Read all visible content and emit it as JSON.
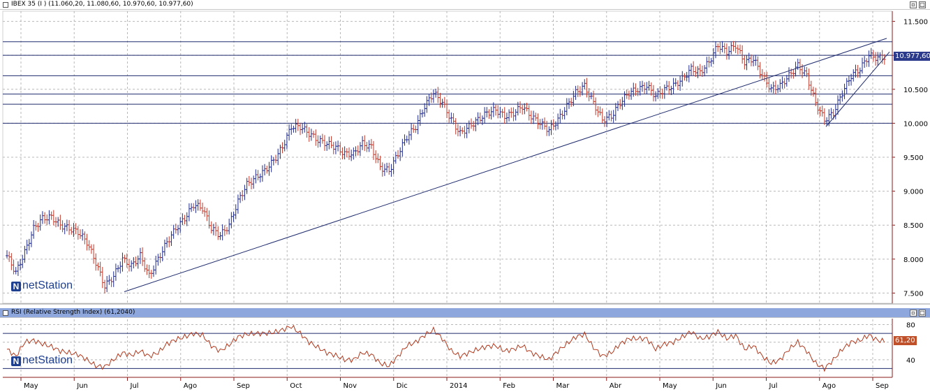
{
  "price_panel": {
    "header": "IBEX 35 (I ) (11.060,20, 11.080,60, 10.970,60, 10.977,60)",
    "current_label": "10.977,60",
    "current_value": 10977.6,
    "logo": "netStation",
    "logo_mark": "N"
  },
  "rsi_panel": {
    "header": "RSI (Relative Strength Index) (61,2040)",
    "current_label": "61,20",
    "current_value": 61.2,
    "logo": "netStation",
    "logo_mark": "N"
  },
  "window_buttons": {
    "restore": "▫",
    "maximize": "□"
  },
  "months": [
    "May",
    "Jun",
    "Jul",
    "Ago",
    "Sep",
    "Oct",
    "Nov",
    "Dic",
    "2014",
    "Feb",
    "Mar",
    "Abr",
    "May",
    "Jun",
    "Jul",
    "Ago",
    "Sep"
  ],
  "colors": {
    "up": "#1f2b8f",
    "down": "#c0392b",
    "rsi_line": "#b0391e",
    "hline": "#1f2b6e",
    "grid": "#b8b8b8",
    "axis": "#8b1a1a",
    "price_tag": "#2b3a8a",
    "rsi_tag": "#c0502a"
  },
  "chart_data": [
    {
      "type": "ohlc",
      "title": "IBEX 35 (I ) (11.060,20, 11.080,60, 10.970,60, 10.977,60)",
      "y_ticks": [
        "11.500",
        "11.000",
        "10.500",
        "10.000",
        "9.500",
        "9.000",
        "8.500",
        "8.000",
        "7.500"
      ],
      "ylim": [
        7350,
        11650
      ],
      "horizontal_levels": [
        11200,
        11000,
        10700,
        10430,
        10280,
        10000
      ],
      "trendlines": [
        {
          "from": [
            "Jun",
            7520
          ],
          "to": [
            "Sep",
            11250
          ]
        },
        {
          "from": [
            "Ago",
            9950
          ],
          "to": [
            "Sep",
            11050
          ]
        }
      ],
      "closes_approx": [
        8050,
        7800,
        8100,
        8450,
        8600,
        8620,
        8500,
        8450,
        8400,
        8250,
        7950,
        7600,
        7750,
        8000,
        7900,
        8050,
        7750,
        8000,
        8250,
        8450,
        8600,
        8800,
        8750,
        8450,
        8350,
        8500,
        8850,
        9100,
        9200,
        9300,
        9450,
        9650,
        9950,
        9950,
        9850,
        9750,
        9700,
        9650,
        9550,
        9550,
        9700,
        9650,
        9350,
        9300,
        9550,
        9800,
        9950,
        10250,
        10450,
        10300,
        10050,
        9850,
        9950,
        10050,
        10150,
        10200,
        10100,
        10150,
        10250,
        10100,
        10000,
        9900,
        10050,
        10250,
        10450,
        10550,
        10300,
        10050,
        10100,
        10300,
        10450,
        10500,
        10550,
        10400,
        10500,
        10550,
        10650,
        10800,
        10750,
        10900,
        11150,
        11050,
        11150,
        10900,
        10950,
        10700,
        10500,
        10550,
        10700,
        10850,
        10700,
        10300,
        10050,
        10150,
        10450,
        10700,
        10800,
        11000,
        10960,
        10978
      ]
    },
    {
      "type": "line",
      "title": "RSI (Relative Strength Index) (61,2040)",
      "y_ticks": [
        "80",
        "60",
        "40"
      ],
      "ylim": [
        20,
        86
      ],
      "horizontal_levels": [
        70,
        30
      ],
      "values_approx": [
        52,
        44,
        60,
        62,
        58,
        55,
        50,
        48,
        46,
        40,
        33,
        32,
        40,
        48,
        45,
        50,
        44,
        48,
        58,
        63,
        66,
        70,
        68,
        56,
        50,
        57,
        66,
        69,
        70,
        70,
        71,
        74,
        78,
        70,
        60,
        54,
        48,
        45,
        40,
        40,
        48,
        46,
        36,
        33,
        44,
        56,
        60,
        68,
        74,
        64,
        50,
        44,
        48,
        52,
        55,
        56,
        50,
        52,
        56,
        48,
        44,
        40,
        50,
        58,
        66,
        69,
        54,
        44,
        48,
        58,
        64,
        64,
        64,
        52,
        58,
        60,
        66,
        72,
        64,
        66,
        72,
        64,
        68,
        52,
        56,
        44,
        36,
        40,
        52,
        60,
        50,
        36,
        30,
        40,
        52,
        60,
        62,
        68,
        62,
        61.2
      ]
    }
  ]
}
